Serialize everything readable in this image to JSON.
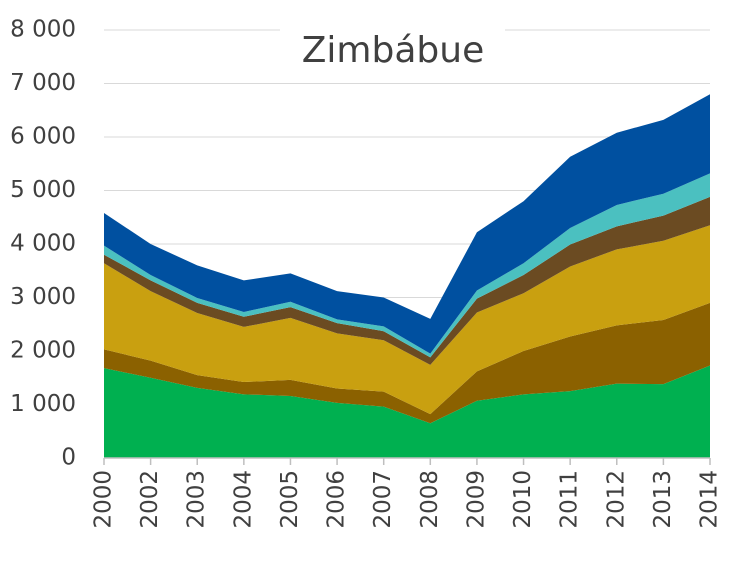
{
  "chart_data": {
    "type": "stacked_area",
    "title": "Zimbábue",
    "categories": [
      "2000",
      "2002",
      "2003",
      "2004",
      "2005",
      "2006",
      "2007",
      "2008",
      "2009",
      "2010",
      "2011",
      "2012",
      "2013",
      "2014"
    ],
    "series": [
      {
        "color": "#00b050",
        "values": [
          1680,
          1500,
          1310,
          1190,
          1160,
          1030,
          960,
          650,
          1070,
          1190,
          1250,
          1390,
          1380,
          1730
        ]
      },
      {
        "color": "#8b6100",
        "values": [
          350,
          320,
          240,
          230,
          300,
          270,
          280,
          170,
          550,
          810,
          1020,
          1090,
          1200,
          1170
        ]
      },
      {
        "color": "#c9a010",
        "values": [
          1610,
          1300,
          1160,
          1030,
          1160,
          1030,
          960,
          920,
          1100,
          1080,
          1310,
          1420,
          1480,
          1450
        ]
      },
      {
        "color": "#6b4b22",
        "values": [
          160,
          200,
          190,
          190,
          200,
          190,
          170,
          140,
          260,
          340,
          410,
          430,
          470,
          530
        ]
      },
      {
        "color": "#4bc0c0",
        "values": [
          170,
          100,
          90,
          90,
          100,
          70,
          90,
          70,
          150,
          220,
          310,
          400,
          410,
          440
        ]
      },
      {
        "color": "#0050a0",
        "values": [
          610,
          580,
          610,
          590,
          530,
          530,
          540,
          650,
          1090,
          1160,
          1330,
          1350,
          1380,
          1480
        ]
      }
    ],
    "ylim": [
      0,
      8000
    ],
    "yticks": [
      0,
      {
        "value": 1000,
        "label": "1 000"
      },
      {
        "value": 2000,
        "label": "2 000"
      },
      {
        "value": 3000,
        "label": "3 000"
      },
      {
        "value": 4000,
        "label": "4 000"
      },
      {
        "value": 5000,
        "label": "5 000"
      },
      {
        "value": 6000,
        "label": "6 000"
      },
      {
        "value": 7000,
        "label": "7 000"
      },
      {
        "value": 8000,
        "label": "8 000"
      }
    ],
    "grid": true
  }
}
